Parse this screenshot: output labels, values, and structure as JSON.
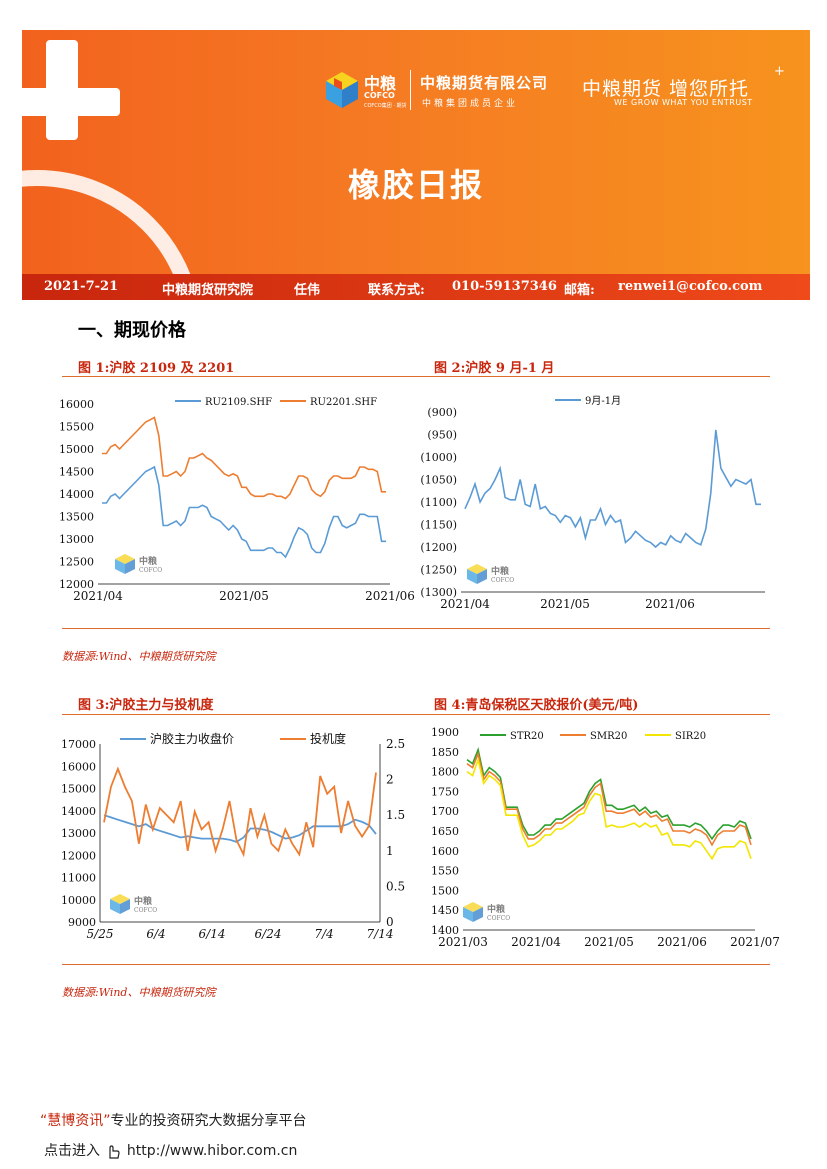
{
  "header": {
    "logo_cn": "中粮",
    "logo_en": "COFCO",
    "logo_tiny": "COFCO集团 · 期货",
    "company": "中粮期货有限公司",
    "company_sub": "中粮集团成员企业",
    "slogan": "中粮期货 增您所托",
    "slogan_plus": "+",
    "slogan_en": "WE GROW WHAT YOU ENTRUST",
    "title": "橡胶日报",
    "date": "2021-7-21",
    "institute": "中粮期货研究院",
    "author": "任伟",
    "contact_label": "联系方式:",
    "contact": "010-59137346",
    "email_label": "邮箱:",
    "email": "renwei1@cofco.com"
  },
  "section_title": "一、期现价格",
  "watermark": {
    "cn": "中粮",
    "en": "COFCO"
  },
  "figures": {
    "fig1_title": "图 1:沪胶 2109 及 2201",
    "fig2_title": "图 2:沪胶 9 月-1 月",
    "fig3_title": "图 3:沪胶主力与投机度",
    "fig4_title": "图 4:青岛保税区天胶报价(美元/吨)"
  },
  "sources": {
    "row1": "数据源:Wind、中粮期货研究院",
    "row2": "数据源:Wind、中粮期货研究院"
  },
  "footer": {
    "quote_open": "“",
    "brand": "慧博资讯",
    "quote_close": "”",
    "tagline": "专业的投资研究大数据分享平台",
    "link_label": "点击进入",
    "url": "http://www.hibor.com.cn"
  },
  "colors": {
    "orange": "#f36c21",
    "red": "#c8260d",
    "blue": "#5b9bd5",
    "orange_line": "#ed7d31",
    "green": "#2ca02c",
    "yellow": "#f2e600"
  },
  "chart_data": [
    {
      "type": "line",
      "ylim": [
        12000,
        16000
      ],
      "y_ticks": [
        "16000",
        "15500",
        "15000",
        "14500",
        "14000",
        "13500",
        "13000",
        "12500",
        "12000"
      ],
      "x_ticks": [
        "2021/04",
        "2021/05",
        "2021/06"
      ],
      "series": [
        {
          "name": "RU2109.SHF",
          "values": [
            13800,
            13800,
            13950,
            14000,
            13900,
            14000,
            14100,
            14200,
            14300,
            14400,
            14500,
            14550,
            14600,
            14200,
            13300,
            13300,
            13350,
            13400,
            13300,
            13400,
            13700,
            13700,
            13700,
            13750,
            13700,
            13500,
            13450,
            13400,
            13300,
            13200,
            13300,
            13200,
            13000,
            12950,
            12750,
            12750,
            12750,
            12750,
            12800,
            12800,
            12700,
            12700,
            12600,
            12800,
            13050,
            13250,
            13200,
            13100,
            12800,
            12700,
            12700,
            12900,
            13250,
            13500,
            13500,
            13300,
            13250,
            13300,
            13350,
            13550,
            13550,
            13500,
            13500,
            13500,
            12950,
            12950
          ]
        },
        {
          "name": "RU2201.SHF",
          "values": [
            14900,
            14900,
            15050,
            15100,
            15000,
            15100,
            15200,
            15300,
            15400,
            15500,
            15600,
            15650,
            15700,
            15300,
            14400,
            14400,
            14450,
            14500,
            14400,
            14500,
            14800,
            14800,
            14850,
            14900,
            14800,
            14750,
            14650,
            14550,
            14450,
            14400,
            14450,
            14400,
            14150,
            14150,
            14000,
            13950,
            13950,
            13950,
            14000,
            14000,
            13950,
            13950,
            13900,
            14000,
            14200,
            14400,
            14400,
            14350,
            14100,
            14000,
            13950,
            14050,
            14300,
            14400,
            14400,
            14350,
            14350,
            14350,
            14400,
            14600,
            14600,
            14550,
            14550,
            14500,
            14050,
            14050
          ]
        }
      ]
    },
    {
      "type": "line",
      "ylim": [
        -1300,
        -900
      ],
      "y_ticks": [
        "(900)",
        "(950)",
        "(1000)",
        "(1050)",
        "(1100)",
        "(1150)",
        "(1200)",
        "(1250)",
        "(1300)"
      ],
      "x_ticks": [
        "2021/04",
        "2021/05",
        "2021/06"
      ],
      "series": [
        {
          "name": "9月-1月",
          "values": [
            -1115,
            -1090,
            -1060,
            -1100,
            -1080,
            -1070,
            -1050,
            -1025,
            -1090,
            -1095,
            -1095,
            -1050,
            -1105,
            -1110,
            -1060,
            -1115,
            -1110,
            -1125,
            -1130,
            -1145,
            -1130,
            -1135,
            -1155,
            -1135,
            -1180,
            -1140,
            -1140,
            -1115,
            -1150,
            -1130,
            -1145,
            -1140,
            -1190,
            -1180,
            -1165,
            -1175,
            -1185,
            -1190,
            -1200,
            -1190,
            -1195,
            -1175,
            -1185,
            -1190,
            -1170,
            -1180,
            -1190,
            -1195,
            -1160,
            -1080,
            -940,
            -1025,
            -1045,
            -1065,
            -1050,
            -1055,
            -1060,
            -1050,
            -1105,
            -1105
          ]
        }
      ]
    },
    {
      "type": "line",
      "ylim": [
        9000,
        17000
      ],
      "y2lim": [
        0,
        2.5
      ],
      "y_ticks": [
        "17000",
        "16000",
        "15000",
        "14000",
        "13000",
        "12000",
        "11000",
        "10000",
        "9000"
      ],
      "y2_ticks": [
        "2.5",
        "2",
        "1.5",
        "1",
        "0.5",
        "0"
      ],
      "x_ticks": [
        "5/25",
        "6/4",
        "6/14",
        "6/24",
        "7/4",
        "7/14"
      ],
      "series": [
        {
          "name": "沪胶主力收盘价",
          "axis": "left",
          "values": [
            13800,
            13700,
            13600,
            13500,
            13400,
            13300,
            13400,
            13200,
            13100,
            13000,
            12900,
            12800,
            12850,
            12800,
            12750,
            12750,
            12750,
            12750,
            12700,
            12600,
            12800,
            13200,
            13200,
            13150,
            13050,
            12900,
            12750,
            12800,
            12900,
            13100,
            13300,
            13300,
            13300,
            13300,
            13300,
            13400,
            13600,
            13500,
            13350,
            12950
          ]
        },
        {
          "name": "投机度",
          "axis": "right",
          "values": [
            1.4,
            1.9,
            2.15,
            1.9,
            1.7,
            1.1,
            1.65,
            1.3,
            1.6,
            1.5,
            1.4,
            1.7,
            1.0,
            1.55,
            1.3,
            1.4,
            1.0,
            1.3,
            1.7,
            1.15,
            0.95,
            1.6,
            1.2,
            1.5,
            1.1,
            1.0,
            1.3,
            1.1,
            0.95,
            1.4,
            1.05,
            2.05,
            1.8,
            1.9,
            1.25,
            1.7,
            1.35,
            1.2,
            1.35,
            2.1
          ]
        }
      ]
    },
    {
      "type": "line",
      "ylim": [
        1400,
        1900
      ],
      "y_ticks": [
        "1900",
        "1850",
        "1800",
        "1750",
        "1700",
        "1650",
        "1600",
        "1550",
        "1500",
        "1450",
        "1400"
      ],
      "x_ticks": [
        "2021/03",
        "2021/04",
        "2021/05",
        "2021/06",
        "2021/07"
      ],
      "series": [
        {
          "name": "STR20",
          "values": [
            1830,
            1820,
            1855,
            1790,
            1810,
            1800,
            1785,
            1710,
            1710,
            1710,
            1665,
            1640,
            1640,
            1650,
            1665,
            1665,
            1680,
            1680,
            1690,
            1700,
            1710,
            1720,
            1750,
            1770,
            1780,
            1715,
            1715,
            1705,
            1705,
            1710,
            1715,
            1700,
            1710,
            1695,
            1700,
            1685,
            1690,
            1665,
            1665,
            1665,
            1660,
            1670,
            1665,
            1650,
            1630,
            1650,
            1665,
            1665,
            1660,
            1675,
            1670,
            1630
          ]
        },
        {
          "name": "SMR20",
          "values": [
            1820,
            1810,
            1845,
            1780,
            1800,
            1790,
            1775,
            1705,
            1705,
            1705,
            1655,
            1630,
            1630,
            1640,
            1655,
            1655,
            1670,
            1670,
            1680,
            1690,
            1700,
            1710,
            1740,
            1760,
            1770,
            1700,
            1700,
            1695,
            1695,
            1700,
            1705,
            1690,
            1700,
            1685,
            1690,
            1675,
            1680,
            1650,
            1650,
            1650,
            1645,
            1655,
            1650,
            1640,
            1615,
            1640,
            1650,
            1650,
            1650,
            1665,
            1660,
            1615
          ]
        },
        {
          "name": "SIR20",
          "values": [
            1800,
            1790,
            1830,
            1770,
            1790,
            1780,
            1765,
            1690,
            1690,
            1690,
            1640,
            1610,
            1615,
            1625,
            1640,
            1640,
            1655,
            1655,
            1665,
            1675,
            1690,
            1695,
            1725,
            1745,
            1740,
            1660,
            1665,
            1660,
            1660,
            1665,
            1670,
            1660,
            1670,
            1660,
            1665,
            1640,
            1645,
            1615,
            1615,
            1615,
            1610,
            1625,
            1620,
            1600,
            1580,
            1605,
            1610,
            1610,
            1610,
            1625,
            1620,
            1580
          ]
        }
      ]
    }
  ]
}
